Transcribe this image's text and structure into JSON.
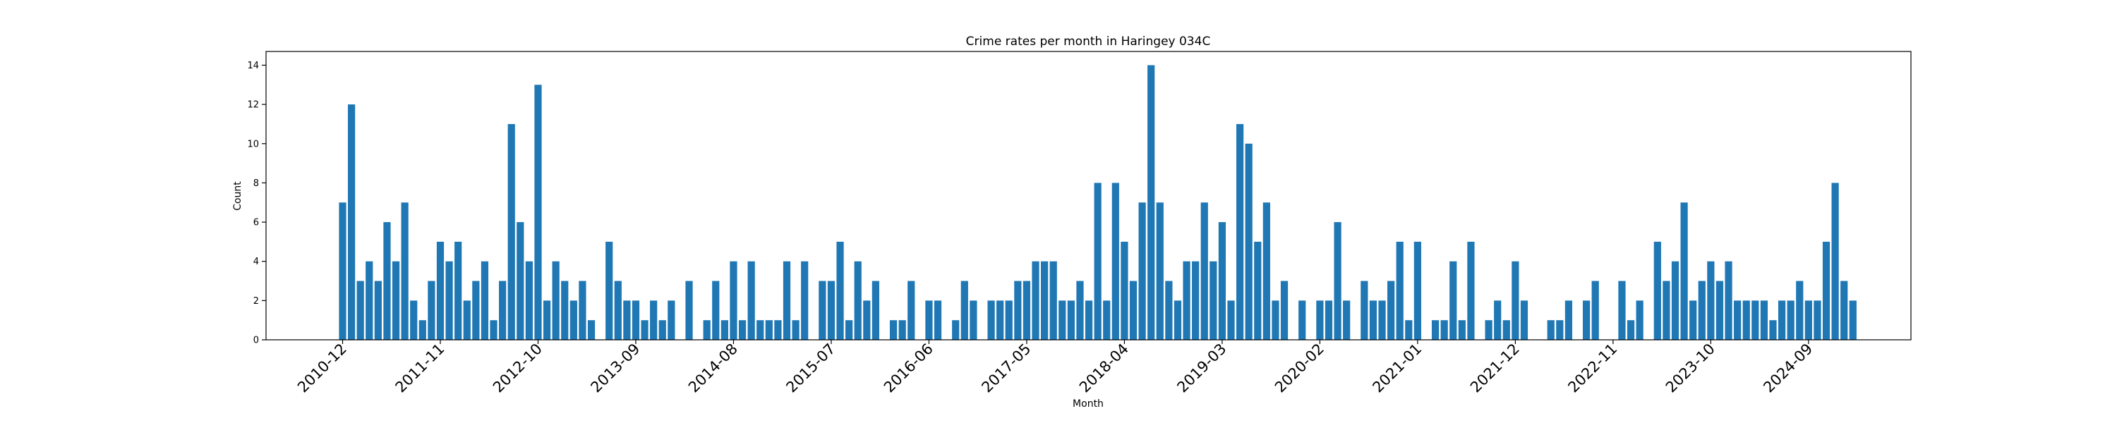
{
  "chart_data": {
    "type": "bar",
    "title": "Crime rates per month in Haringey 034C",
    "xlabel": "Month",
    "ylabel": "Count",
    "ylim": [
      0,
      14.7
    ],
    "yticks": [
      0,
      2,
      4,
      6,
      8,
      10,
      12,
      14
    ],
    "xticks": [
      "2010-12",
      "2011-11",
      "2012-10",
      "2013-09",
      "2014-08",
      "2015-07",
      "2016-06",
      "2017-05",
      "2018-04",
      "2019-03",
      "2020-02",
      "2021-01",
      "2021-12",
      "2022-11",
      "2023-10",
      "2024-09"
    ],
    "x_start": "2010-12",
    "bar_color": "#1f77b4",
    "grid": false,
    "values": [
      7,
      12,
      3,
      4,
      3,
      6,
      4,
      7,
      2,
      1,
      3,
      5,
      4,
      5,
      2,
      3,
      4,
      1,
      3,
      11,
      6,
      4,
      13,
      2,
      4,
      3,
      2,
      3,
      1,
      0,
      5,
      3,
      2,
      2,
      1,
      2,
      1,
      2,
      0,
      3,
      0,
      1,
      3,
      1,
      4,
      1,
      4,
      1,
      1,
      1,
      4,
      1,
      4,
      0,
      3,
      3,
      5,
      1,
      4,
      2,
      3,
      0,
      1,
      1,
      3,
      0,
      2,
      2,
      0,
      1,
      3,
      2,
      0,
      2,
      2,
      2,
      3,
      3,
      4,
      4,
      4,
      2,
      2,
      3,
      2,
      8,
      2,
      8,
      5,
      3,
      7,
      14,
      7,
      3,
      2,
      4,
      4,
      7,
      4,
      6,
      2,
      11,
      10,
      5,
      7,
      2,
      3,
      0,
      2,
      0,
      2,
      2,
      6,
      2,
      0,
      3,
      2,
      2,
      3,
      5,
      1,
      5,
      0,
      1,
      1,
      4,
      1,
      5,
      0,
      1,
      2,
      1,
      4,
      2,
      0,
      0,
      1,
      1,
      2,
      0,
      2,
      3,
      0,
      0,
      3,
      1,
      2,
      0,
      5,
      3,
      4,
      7,
      2,
      3,
      4,
      3,
      4,
      2,
      2,
      2,
      2,
      1,
      2,
      2,
      3,
      2,
      2,
      5,
      8,
      3,
      2
    ]
  }
}
